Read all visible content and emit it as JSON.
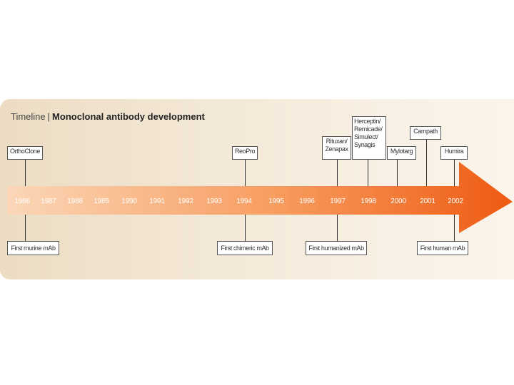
{
  "title": {
    "prefix": "Timeline",
    "main": "Monoclonal antibody development"
  },
  "years": [
    "1986",
    "1987",
    "1988",
    "1989",
    "1990",
    "1991",
    "1992",
    "1993",
    "1994",
    "1995",
    "1996",
    "1997",
    "1998",
    "2000",
    "2001",
    "2002"
  ],
  "top_events": [
    {
      "label": "OrthoClone",
      "year": "1986"
    },
    {
      "label": "ReoPro",
      "year": "1994"
    },
    {
      "label": "Rituxan/ Zenapax",
      "year": "1997"
    },
    {
      "label": "Herceptin/ Remicade/ Simulect/ Synagis",
      "year": "1998"
    },
    {
      "label": "Mylotarg",
      "year": "2000"
    },
    {
      "label": "Campath",
      "year": "2001"
    },
    {
      "label": "Humira",
      "year": "2002"
    }
  ],
  "bottom_events": [
    {
      "label": "First murine mAb",
      "year": "1986"
    },
    {
      "label": "First chimeric mAb",
      "year": "1994"
    },
    {
      "label": "First humanized mAb",
      "year": "1997"
    },
    {
      "label": "First human mAb",
      "year": "2002"
    }
  ],
  "colors": {
    "arrow_start": "#fbd7b8",
    "arrow_end": "#ee5a12",
    "background": "#f4e9d8"
  }
}
